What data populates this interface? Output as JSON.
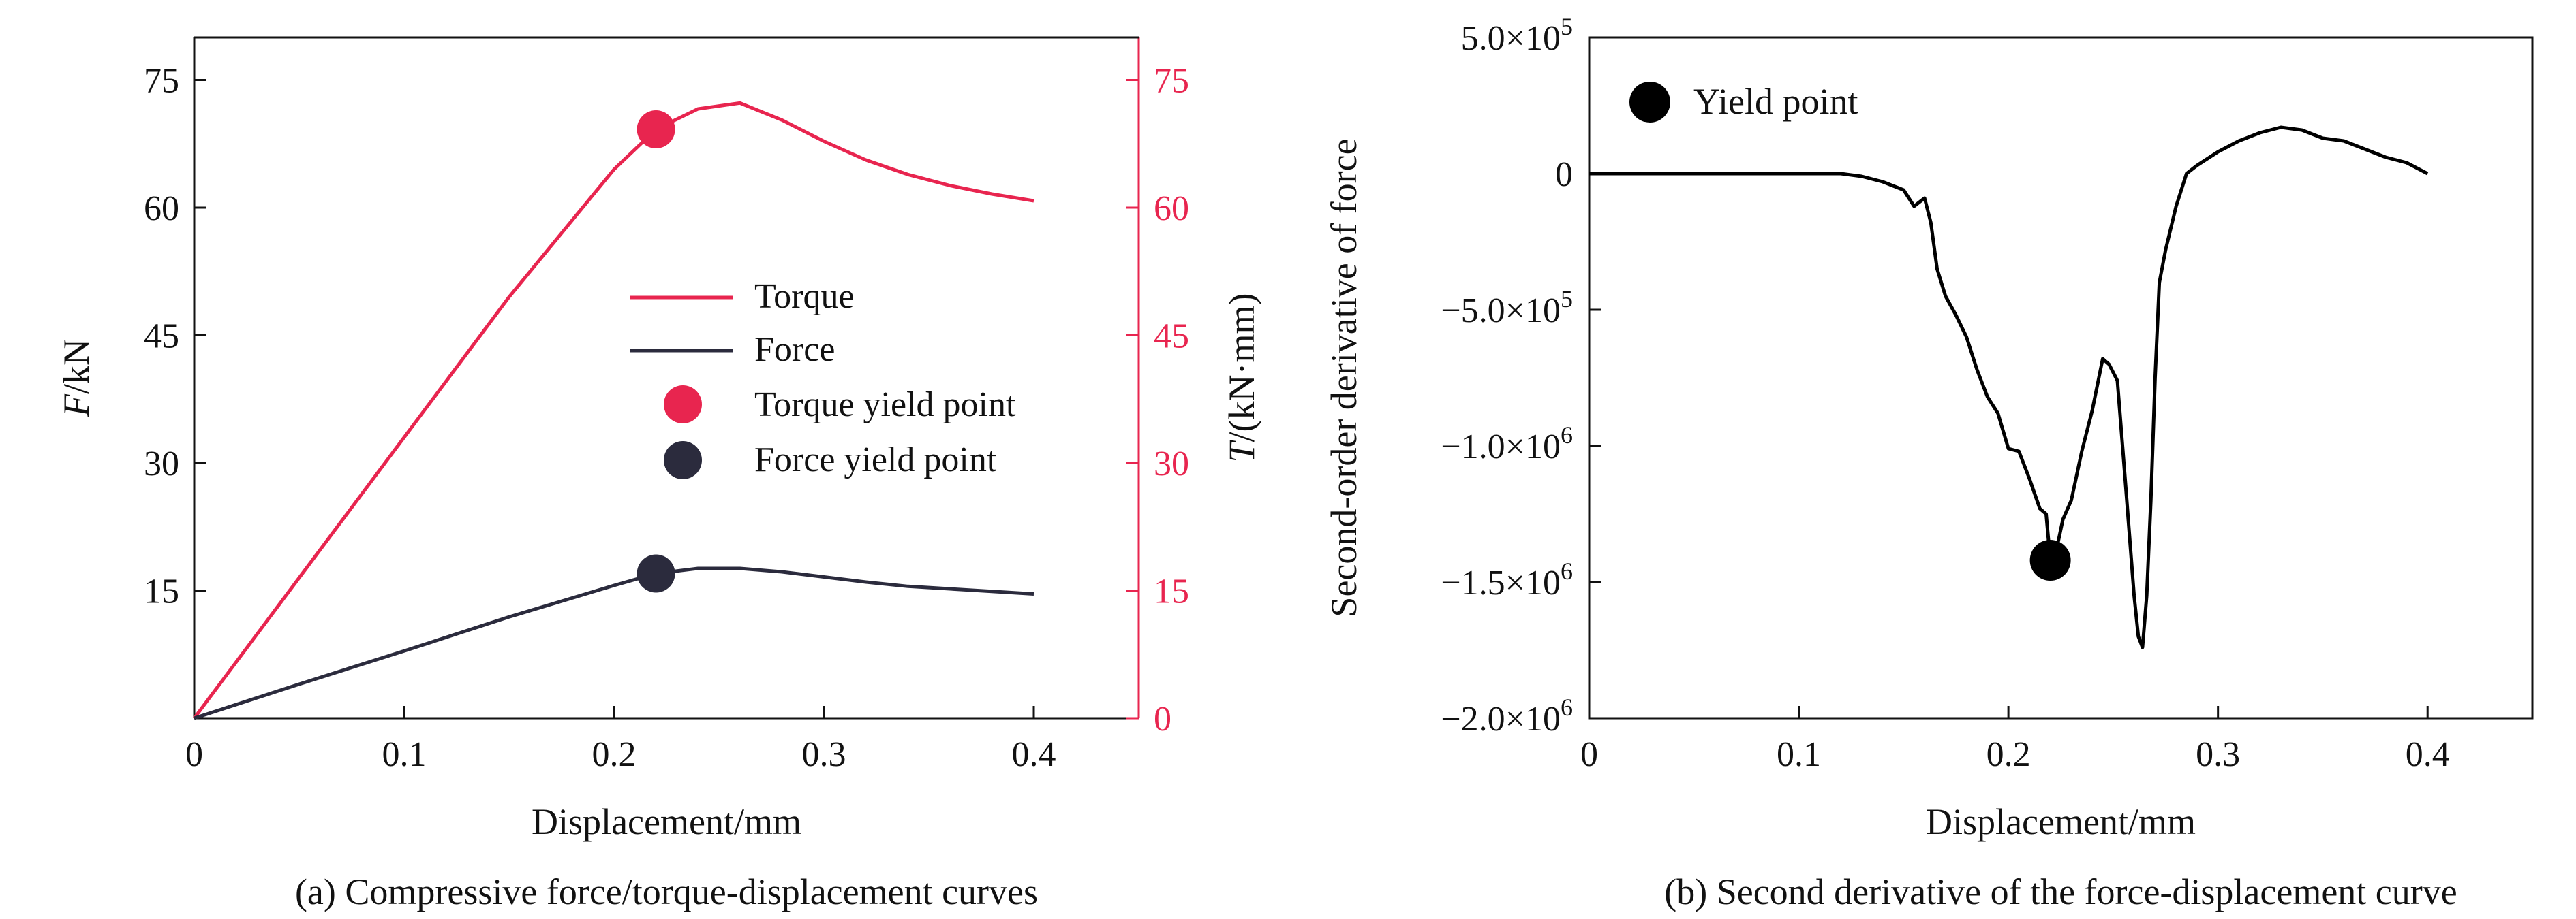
{
  "chart_data": [
    {
      "type": "line",
      "xlabel": "Displacement/mm",
      "ylabel_left": "F/kN",
      "ylabel_left_italic": "F",
      "ylabel_left_rest": "/kN",
      "ylabel_right": "T/(kN·mm)",
      "ylabel_right_italic": "T",
      "ylabel_right_rest": "/(kN·mm)",
      "caption": "(a) Compressive force/torque-displacement curves",
      "xlim": [
        0,
        0.45
      ],
      "ylim": [
        0,
        80
      ],
      "x_ticks": [
        "0",
        "0.1",
        "0.2",
        "0.3",
        "0.4"
      ],
      "y_left_ticks": [
        "15",
        "30",
        "45",
        "60",
        "75"
      ],
      "y_right_ticks": [
        "0",
        "15",
        "30",
        "45",
        "60",
        "75"
      ],
      "legend_position": "center-right",
      "series": [
        {
          "name": "Torque",
          "color": "#e8254f",
          "x": [
            0,
            0.05,
            0.1,
            0.15,
            0.2,
            0.22,
            0.24,
            0.26,
            0.28,
            0.3,
            0.32,
            0.34,
            0.36,
            0.38,
            0.4
          ],
          "y": [
            0,
            16.5,
            33,
            49.5,
            64.5,
            69.2,
            71.6,
            72.3,
            70.3,
            67.8,
            65.6,
            63.9,
            62.6,
            61.6,
            60.8
          ]
        },
        {
          "name": "Force",
          "color": "#2b2b3d",
          "x": [
            0,
            0.05,
            0.1,
            0.15,
            0.2,
            0.22,
            0.24,
            0.26,
            0.28,
            0.3,
            0.32,
            0.34,
            0.36,
            0.38,
            0.4
          ],
          "y": [
            0,
            4.0,
            7.9,
            11.9,
            15.6,
            17.0,
            17.6,
            17.6,
            17.2,
            16.6,
            16.0,
            15.5,
            15.2,
            14.9,
            14.6
          ]
        }
      ],
      "markers": [
        {
          "name": "Torque yield point",
          "color": "#e8254f",
          "x": 0.22,
          "y": 69.2
        },
        {
          "name": "Force yield point",
          "color": "#2b2b3d",
          "x": 0.22,
          "y": 17.0
        }
      ]
    },
    {
      "type": "line",
      "xlabel": "Displacement/mm",
      "ylabel": "Second-order derivative of force",
      "caption": "(b) Second derivative of the force-displacement curve",
      "xlim": [
        0,
        0.45
      ],
      "ylim": [
        -2000000,
        500000
      ],
      "x_ticks": [
        "0",
        "0.1",
        "0.2",
        "0.3",
        "0.4"
      ],
      "y_ticks": [
        {
          "value": 500000,
          "mant": "5.0×10",
          "exp": "5"
        },
        {
          "value": 0,
          "mant": "0",
          "exp": ""
        },
        {
          "value": -500000,
          "mant": "−5.0×10",
          "exp": "5"
        },
        {
          "value": -1000000,
          "mant": "−1.0×10",
          "exp": "6"
        },
        {
          "value": -1500000,
          "mant": "−1.5×10",
          "exp": "6"
        },
        {
          "value": -2000000,
          "mant": "−2.0×10",
          "exp": "6"
        }
      ],
      "legend_position": "top-left",
      "series": [
        {
          "name": "",
          "color": "#000000",
          "x": [
            0,
            0.05,
            0.1,
            0.12,
            0.13,
            0.14,
            0.15,
            0.155,
            0.16,
            0.163,
            0.166,
            0.17,
            0.175,
            0.18,
            0.185,
            0.19,
            0.195,
            0.2,
            0.205,
            0.21,
            0.215,
            0.218,
            0.22,
            0.223,
            0.226,
            0.23,
            0.235,
            0.24,
            0.245,
            0.248,
            0.252,
            0.256,
            0.26,
            0.262,
            0.264,
            0.266,
            0.268,
            0.27,
            0.272,
            0.275,
            0.28,
            0.285,
            0.29,
            0.3,
            0.31,
            0.32,
            0.33,
            0.34,
            0.35,
            0.36,
            0.37,
            0.38,
            0.39,
            0.4
          ],
          "y": [
            0,
            0,
            0,
            0,
            -10000,
            -30000,
            -60000,
            -120000,
            -90000,
            -180000,
            -350000,
            -450000,
            -520000,
            -600000,
            -720000,
            -820000,
            -880000,
            -1010000,
            -1020000,
            -1120000,
            -1230000,
            -1250000,
            -1420000,
            -1380000,
            -1270000,
            -1200000,
            -1020000,
            -870000,
            -680000,
            -700000,
            -760000,
            -1150000,
            -1550000,
            -1700000,
            -1740000,
            -1550000,
            -1200000,
            -750000,
            -400000,
            -280000,
            -120000,
            0,
            30000,
            80000,
            120000,
            150000,
            170000,
            160000,
            130000,
            120000,
            90000,
            60000,
            40000,
            0
          ]
        }
      ],
      "markers": [
        {
          "name": "Yield point",
          "color": "#000000",
          "x": 0.22,
          "y": -1420000
        }
      ]
    }
  ]
}
